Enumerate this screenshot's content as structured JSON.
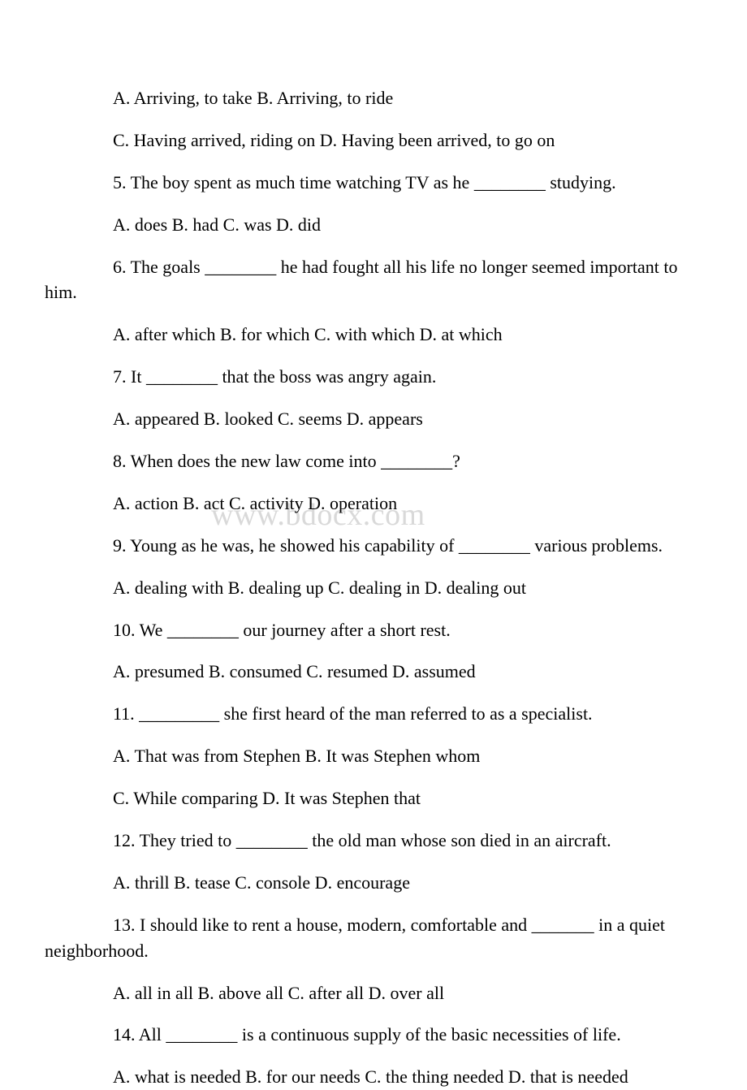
{
  "watermark": "www.bdocx.com",
  "lines": [
    {
      "text": "A. Arriving, to take  B. Arriving, to ride",
      "indent": true
    },
    {
      "text": " C. Having arrived, riding on  D. Having been arrived, to go on",
      "indent": true
    },
    {
      "text": "5. The boy spent as much time watching TV as he ________ studying.",
      "indent": true
    },
    {
      "text": " A. does  B. had  C. was  D. did",
      "indent": true
    },
    {
      "text": "6. The goals ________ he had fought all his life no longer seemed important to him.",
      "indent": true
    },
    {
      "text": "A. after which   B. for which   C. with which   D. at which",
      "indent": true
    },
    {
      "text": "7. It ________ that the boss was angry again.",
      "indent": true
    },
    {
      "text": " A. appeared  B. looked  C. seems  D. appears",
      "indent": true
    },
    {
      "text": "8. When does the new law come into ________?",
      "indent": true
    },
    {
      "text": " A. action  B. act  C. activity  D. operation",
      "indent": true
    },
    {
      "text": "9. Young as he was, he showed his capability of ________ various problems.",
      "indent": true
    },
    {
      "text": " A. dealing with  B. dealing up  C. dealing in  D. dealing out",
      "indent": true
    },
    {
      "text": "10. We ________ our journey after a short rest.",
      "indent": true
    },
    {
      "text": " A. presumed  B. consumed  C. resumed  D. assumed",
      "indent": true
    },
    {
      "text": "11. _________ she first heard of the man referred to as a specialist.",
      "indent": true
    },
    {
      "text": " A. That was from Stephen    B. It was Stephen whom",
      "indent": true
    },
    {
      "text": " C. While comparing     D. It was Stephen that",
      "indent": true
    },
    {
      "text": "12. They tried to ________ the old man whose son died in an aircraft.",
      "indent": true
    },
    {
      "text": "A. thrill  B. tease  C. console  D. encourage",
      "indent": true
    },
    {
      "text": "13. I should like to rent a house, modern, comfortable and _______ in a quiet neighborhood.",
      "indent": true
    },
    {
      "text": " A. all in all  B. above all  C. after all  D. over all",
      "indent": true
    },
    {
      "text": "14. All ________ is a continuous supply of the basic necessities of life.",
      "indent": true
    },
    {
      "text": "A. what is needed  B. for our needs  C. the thing needed  D. that is needed",
      "indent": true
    }
  ]
}
